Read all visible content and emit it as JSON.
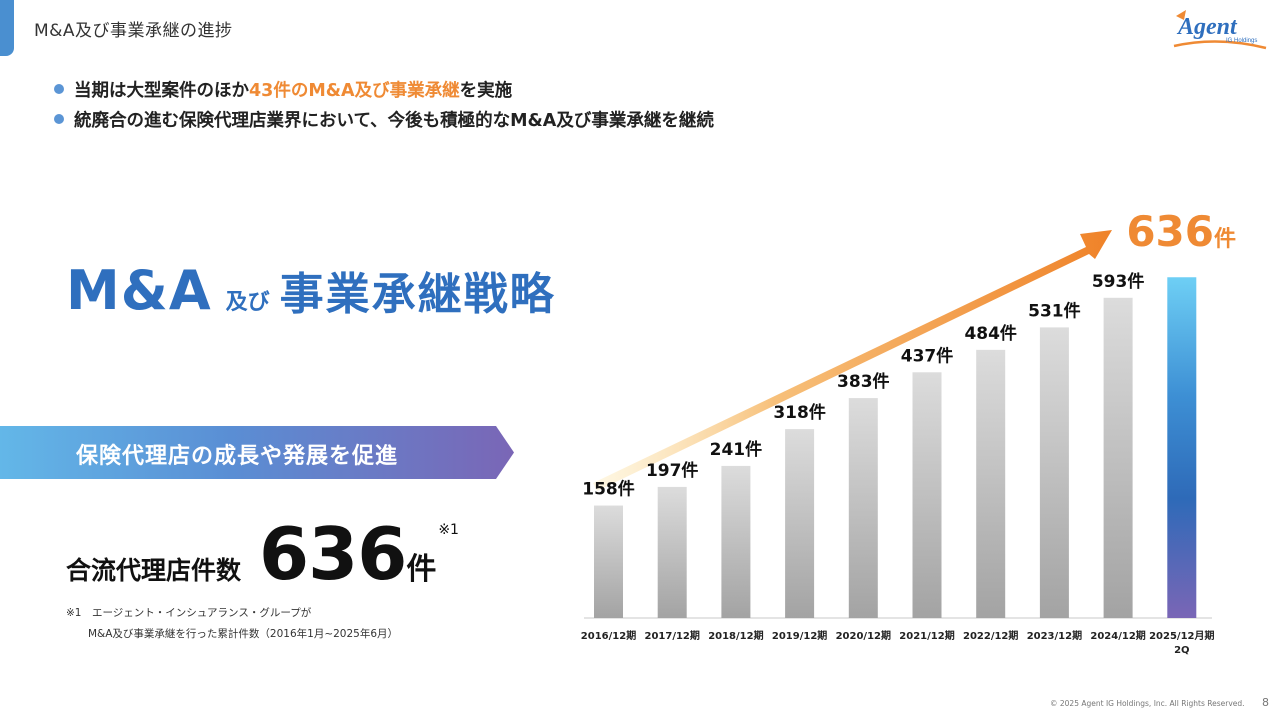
{
  "header": {
    "title": "M&A及び事業承継の進捗"
  },
  "logo": {
    "text": "Agent",
    "sub": "IG Holdings"
  },
  "bullets": {
    "b1_pre": "当期は大型案件のほか",
    "b1_hl": "43件のM&A及び事業承継",
    "b1_post": "を実施",
    "b2": "統廃合の進む保険代理店業界において、今後も積極的なM&A及び事業承継を継続"
  },
  "headline": {
    "ma": "M&A",
    "oyobi": "及び",
    "main": "事業承継戦略"
  },
  "banner": {
    "text": "保険代理店の成長や発展を促進"
  },
  "count": {
    "label": "合流代理店件数",
    "value": "636",
    "unit": "件",
    "note": "※1"
  },
  "footnote": {
    "line1": "※1　エージェント・インシュアランス・グループが",
    "line2": "M&A及び事業承継を行った累計件数（2016年1月~2025年6月）"
  },
  "chart_data": {
    "type": "bar",
    "categories": [
      "2016/12期",
      "2017/12期",
      "2018/12期",
      "2019/12期",
      "2020/12期",
      "2021/12期",
      "2022/12期",
      "2023/12期",
      "2024/12期",
      "2025/12月期 2Q"
    ],
    "values": [
      158,
      197,
      241,
      318,
      383,
      437,
      484,
      531,
      593,
      636
    ],
    "value_unit": "件",
    "highlight": {
      "value": "636",
      "unit": "件"
    },
    "colors": {
      "bars": "#a6a6a6",
      "last_bar": "#2e73bd",
      "arrow": "#ef8228",
      "highlight_text": "#ef8a34"
    }
  },
  "footer": {
    "copyright": "© 2025 Agent IG Holdings, Inc. All Rights Reserved.",
    "page": "8"
  }
}
